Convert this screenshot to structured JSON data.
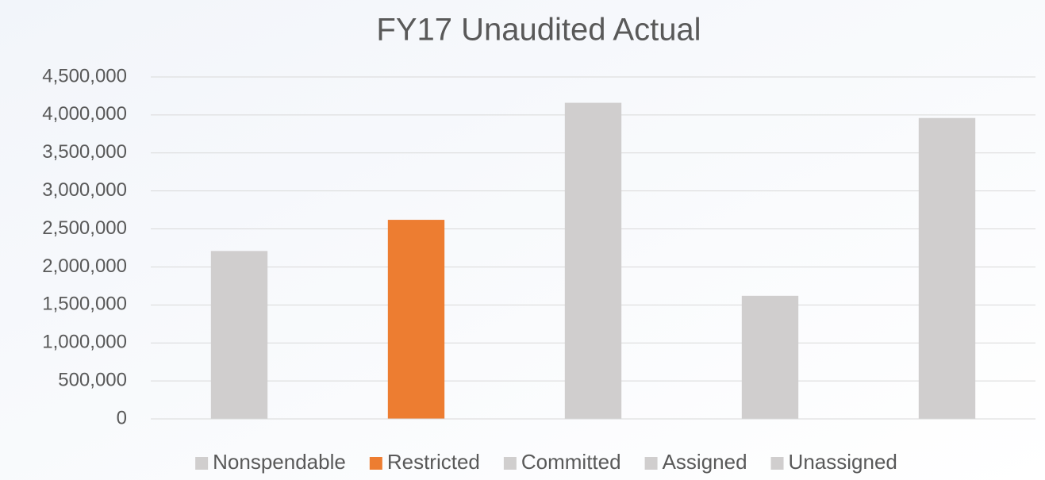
{
  "chart_data": {
    "type": "bar",
    "title": "FY17 Unaudited Actual",
    "categories": [
      null
    ],
    "series": [
      {
        "name": "Nonspendable",
        "color": "#d0cece",
        "values": [
          2210000
        ]
      },
      {
        "name": "Restricted",
        "color": "#ed7d31",
        "values": [
          2620000
        ]
      },
      {
        "name": "Committed",
        "color": "#d0cece",
        "values": [
          4160000
        ]
      },
      {
        "name": "Assigned",
        "color": "#d0cece",
        "values": [
          1620000
        ]
      },
      {
        "name": "Unassigned",
        "color": "#d0cece",
        "values": [
          3960000
        ]
      }
    ],
    "ylim": [
      0,
      4500000
    ],
    "yticks": [
      0,
      {
        "value": 500000,
        "label": "500,000"
      },
      {
        "value": 1000000,
        "label": "1,000,000"
      },
      {
        "value": 1500000,
        "label": "1,500,000"
      },
      {
        "value": 2000000,
        "label": "2,000,000"
      },
      {
        "value": 2500000,
        "label": "2,500,000"
      },
      {
        "value": 3000000,
        "label": "3,000,000"
      },
      {
        "value": 3500000,
        "label": "3,500,000"
      },
      {
        "value": 4000000,
        "label": "4,000,000"
      },
      {
        "value": 4500000,
        "label": "4,500,000"
      }
    ],
    "grid": true,
    "legend": "bottom"
  }
}
